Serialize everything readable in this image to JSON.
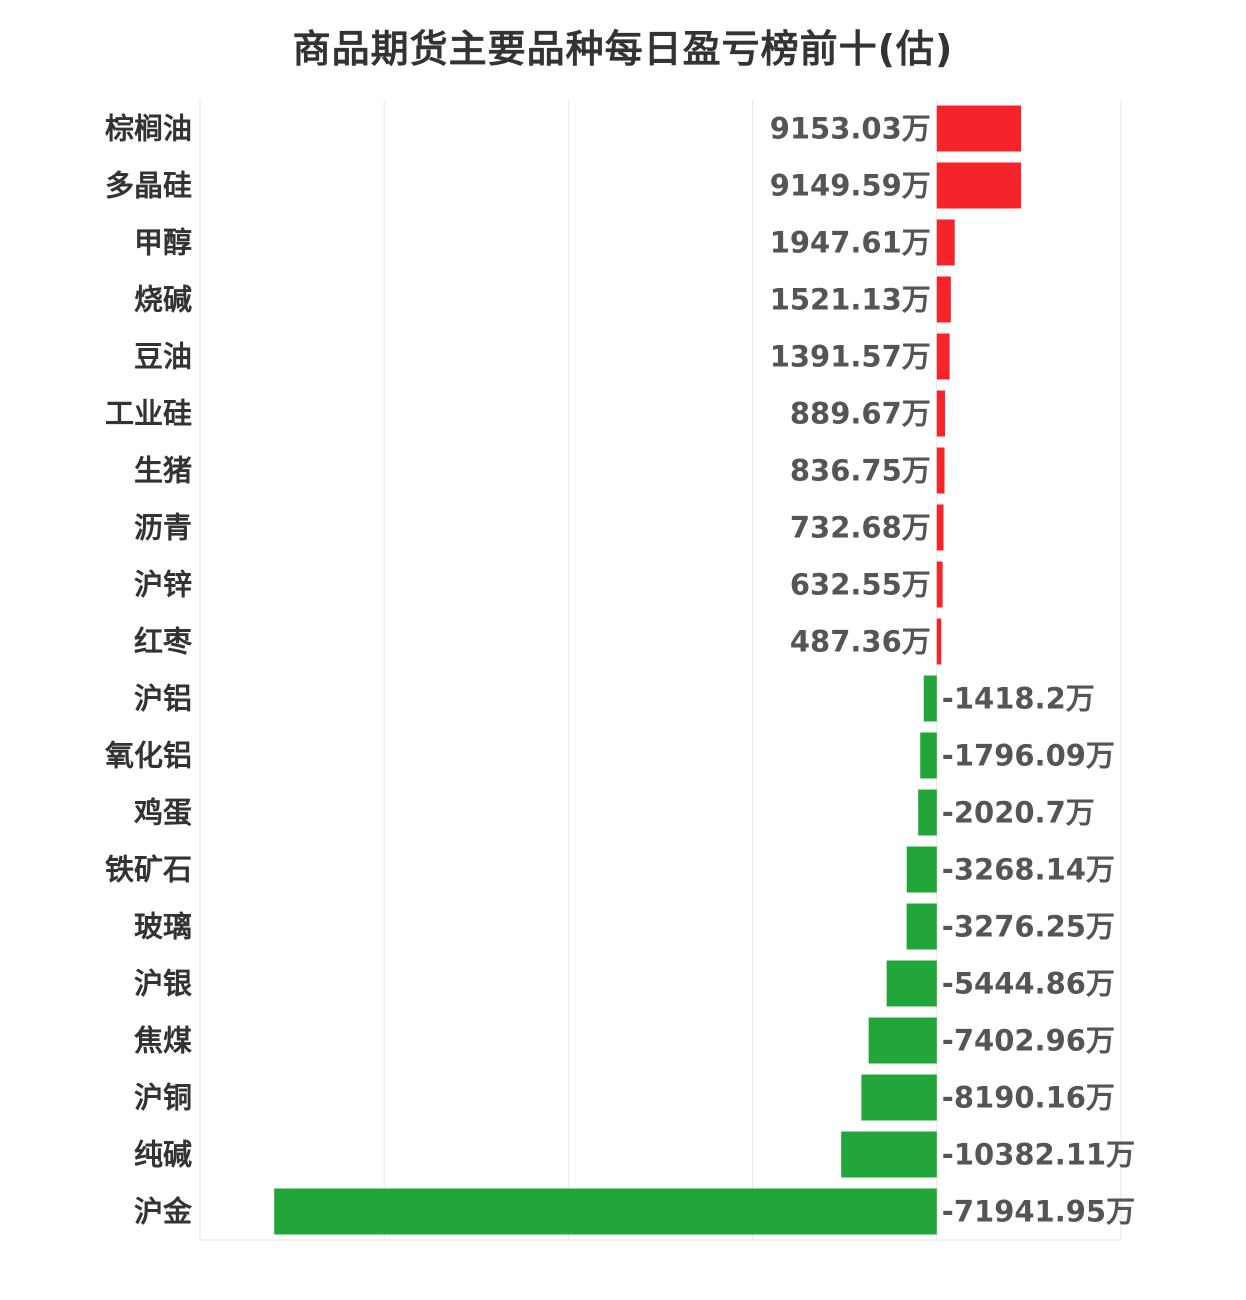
{
  "chart_data": {
    "type": "bar",
    "orientation": "horizontal",
    "title": "商品期货主要品种每日盈亏榜前十(估)",
    "unit": "万",
    "categories": [
      "棕榈油",
      "多晶硅",
      "甲醇",
      "烧碱",
      "豆油",
      "工业硅",
      "生猪",
      "沥青",
      "沪锌",
      "红枣",
      "沪铝",
      "氧化铝",
      "鸡蛋",
      "铁矿石",
      "玻璃",
      "沪银",
      "焦煤",
      "沪铜",
      "纯碱",
      "沪金"
    ],
    "values": [
      9153.03,
      9149.59,
      1947.61,
      1521.13,
      1391.57,
      889.67,
      836.75,
      732.68,
      632.55,
      487.36,
      -1418.2,
      -1796.09,
      -2020.7,
      -3268.14,
      -3276.25,
      -5444.86,
      -7402.96,
      -8190.16,
      -10382.11,
      -71941.95
    ],
    "labels": [
      "9153.03万",
      "9149.59万",
      "1947.61万",
      "1521.13万",
      "1391.57万",
      "889.67万",
      "836.75万",
      "732.68万",
      "632.55万",
      "487.36万",
      "-1418.2万",
      "-1796.09万",
      "-2020.7万",
      "-3268.14万",
      "-3276.25万",
      "-5444.86万",
      "-7402.96万",
      "-8190.16万",
      "-10382.11万",
      "-71941.95万"
    ],
    "xlim": [
      -80000,
      20000
    ],
    "grid": true,
    "colors": {
      "positive": "#f5242a",
      "negative": "#22a63a",
      "grid": "#e6e6e6"
    }
  }
}
